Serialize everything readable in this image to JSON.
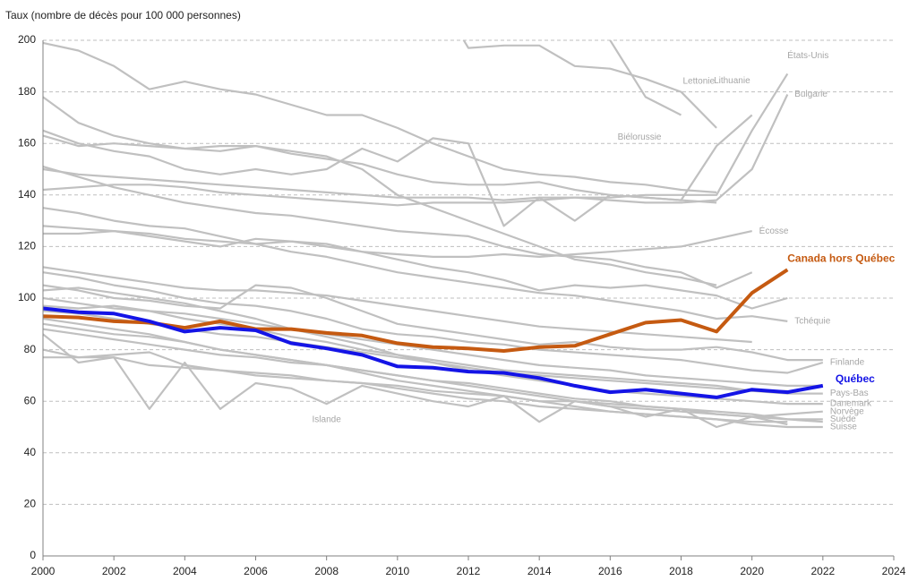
{
  "chart_data": {
    "type": "line",
    "y_axis_label": "Taux (nombre de décès pour 100 000 personnes)",
    "x": [
      2000,
      2001,
      2002,
      2003,
      2004,
      2005,
      2006,
      2007,
      2008,
      2009,
      2010,
      2011,
      2012,
      2013,
      2014,
      2015,
      2016,
      2017,
      2018,
      2019,
      2020,
      2021,
      2022
    ],
    "xlim": [
      2000,
      2024
    ],
    "xticks": [
      2000,
      2002,
      2004,
      2006,
      2008,
      2010,
      2012,
      2014,
      2016,
      2018,
      2020,
      2022,
      2024
    ],
    "ylim": [
      0,
      200
    ],
    "yticks": [
      0,
      20,
      40,
      60,
      80,
      100,
      120,
      140,
      160,
      180,
      200
    ],
    "grid": true,
    "series": [
      {
        "color": "#c0c0c0",
        "values": [
          199,
          196,
          190,
          181,
          184,
          181,
          179,
          175,
          171,
          171,
          166,
          160,
          155,
          150,
          148,
          147,
          145,
          144,
          142,
          141,
          null,
          null,
          null
        ]
      },
      {
        "color": "#c0c0c0",
        "values": [
          178,
          168,
          163,
          160,
          158,
          157,
          159,
          156,
          154,
          152,
          148,
          145,
          144,
          144,
          145,
          142,
          140,
          139,
          138,
          137,
          null,
          null,
          null
        ]
      },
      {
        "color": "#c0c0c0",
        "values": [
          163,
          159,
          160,
          159,
          158,
          159,
          159,
          157,
          155,
          150,
          140,
          135,
          130,
          125,
          120,
          115,
          113,
          110,
          108,
          105,
          null,
          null,
          null
        ]
      },
      {
        "color": "#c0c0c0",
        "values": [
          151,
          147,
          143,
          140,
          137,
          135,
          133,
          132,
          130,
          128,
          126,
          125,
          124,
          120,
          117,
          116,
          115,
          112,
          110,
          104,
          110,
          null,
          null
        ]
      },
      {
        "color": "#c0c0c0",
        "values": [
          125,
          125,
          126,
          124,
          122,
          120,
          123,
          122,
          121,
          118,
          115,
          112,
          110,
          107,
          103,
          105,
          104,
          105,
          103,
          101,
          96,
          100,
          null
        ]
      },
      {
        "color": "#c0c0c0",
        "values": [
          112,
          110,
          108,
          106,
          104,
          103,
          103,
          102,
          101,
          99,
          97,
          95,
          93,
          91,
          89,
          88,
          87,
          86,
          85,
          84,
          83,
          null,
          null
        ]
      },
      {
        "color": "#c0c0c0",
        "values": [
          105,
          103,
          100,
          99,
          97,
          96,
          105,
          104,
          100,
          95,
          90,
          88,
          86,
          84,
          82,
          83,
          81,
          80,
          80,
          81,
          79,
          76,
          76
        ]
      },
      {
        "color": "#c0c0c0",
        "values": [
          97,
          96,
          97,
          95,
          94,
          92,
          90,
          88,
          86,
          84,
          82,
          80,
          78,
          76,
          74,
          73,
          72,
          70,
          69,
          68,
          67,
          66,
          66
        ]
      },
      {
        "color": "#c0c0c0",
        "values": [
          95,
          94,
          92,
          90,
          88,
          86,
          85,
          83,
          81,
          79,
          77,
          75,
          73,
          71,
          70,
          69,
          68,
          67,
          66,
          65,
          64,
          64,
          null
        ]
      },
      {
        "color": "#c0c0c0",
        "values": [
          80,
          77,
          77,
          74,
          73,
          72,
          70,
          69,
          68,
          67,
          66,
          64,
          63,
          62,
          60,
          60,
          59,
          58,
          57,
          56,
          55,
          53,
          52
        ]
      },
      {
        "color": "#c0c0c0",
        "values": [
          77,
          77,
          78,
          79,
          74,
          72,
          71,
          70,
          68,
          67,
          65,
          63,
          61,
          60,
          58,
          57,
          56,
          55,
          54,
          53,
          52,
          52,
          null
        ]
      },
      {
        "name": "États-Unis",
        "color": "#c0c0c0",
        "values": [
          142,
          143,
          144,
          144,
          143,
          141,
          140,
          139,
          138,
          137,
          136,
          137,
          137,
          137,
          138,
          139,
          139,
          140,
          140,
          140,
          165,
          187,
          null
        ]
      },
      {
        "name": "Bulgarie",
        "color": "#c0c0c0",
        "values": [
          150,
          148,
          147,
          146,
          145,
          144,
          143,
          142,
          141,
          140,
          139,
          139,
          139,
          138,
          139,
          139,
          138,
          137,
          137,
          138,
          150,
          179,
          null
        ]
      },
      {
        "name": "Lettonie",
        "color": "#c0c0c0",
        "values": [
          null,
          null,
          null,
          null,
          null,
          null,
          null,
          null,
          null,
          null,
          null,
          220,
          197,
          198,
          198,
          190,
          189,
          185,
          180,
          166,
          null,
          null,
          null
        ]
      },
      {
        "name": "Lithuanie",
        "color": "#c0c0c0",
        "values": [
          165,
          160,
          157,
          155,
          150,
          148,
          150,
          148,
          150,
          158,
          153,
          162,
          160,
          128,
          139,
          130,
          140,
          139,
          138,
          159,
          171,
          null,
          null
        ]
      },
      {
        "name": "Biélorussie",
        "color": "#c0c0c0",
        "values": [
          null,
          null,
          null,
          null,
          null,
          null,
          null,
          null,
          null,
          null,
          null,
          null,
          null,
          null,
          null,
          210,
          200,
          178,
          171,
          null,
          null,
          null,
          null
        ]
      },
      {
        "name": "Écosse",
        "color": "#c0c0c0",
        "values": [
          128,
          127,
          126,
          125,
          123,
          122,
          121,
          122,
          120,
          118,
          117,
          116,
          116,
          117,
          116,
          117,
          118,
          119,
          120,
          123,
          126,
          null,
          null
        ]
      },
      {
        "name": "Tchéquie",
        "color": "#c0c0c0",
        "values": [
          135,
          133,
          130,
          128,
          127,
          124,
          121,
          118,
          116,
          113,
          110,
          108,
          106,
          104,
          102,
          101,
          99,
          97,
          95,
          92,
          93,
          91,
          null
        ]
      },
      {
        "name": "Finlande",
        "color": "#c0c0c0",
        "values": [
          110,
          108,
          105,
          103,
          100,
          98,
          97,
          95,
          92,
          88,
          86,
          85,
          83,
          82,
          80,
          79,
          78,
          77,
          76,
          74,
          72,
          71,
          75
        ]
      },
      {
        "name": "Pays-Bas",
        "color": "#c0c0c0",
        "values": [
          100,
          98,
          96,
          95,
          92,
          90,
          88,
          85,
          83,
          80,
          78,
          76,
          74,
          72,
          71,
          70,
          69,
          68,
          67,
          66,
          64,
          63,
          63
        ]
      },
      {
        "name": "Danemark",
        "color": "#c0c0c0",
        "values": [
          103,
          104,
          102,
          100,
          98,
          95,
          92,
          88,
          85,
          82,
          78,
          75,
          72,
          70,
          68,
          66,
          64,
          63,
          62,
          61,
          60,
          59,
          59
        ]
      },
      {
        "name": "Norvège",
        "color": "#c0c0c0",
        "values": [
          90,
          88,
          86,
          85,
          83,
          80,
          78,
          76,
          74,
          72,
          70,
          68,
          66,
          64,
          62,
          60,
          58,
          57,
          56,
          55,
          54,
          55,
          56
        ]
      },
      {
        "name": "Suède",
        "color": "#c0c0c0",
        "values": [
          88,
          86,
          84,
          82,
          80,
          78,
          77,
          75,
          74,
          72,
          70,
          68,
          67,
          65,
          63,
          61,
          60,
          58,
          57,
          55,
          54,
          53,
          53
        ]
      },
      {
        "name": "Suisse",
        "color": "#c0c0c0",
        "values": [
          92,
          90,
          88,
          86,
          83,
          80,
          78,
          76,
          74,
          71,
          68,
          66,
          64,
          62,
          60,
          58,
          56,
          55,
          54,
          53,
          51,
          50,
          50
        ]
      },
      {
        "name": "Islande",
        "color": "#c0c0c0",
        "values": [
          86,
          75,
          77,
          57,
          75,
          57,
          67,
          65,
          59,
          66,
          63,
          60,
          58,
          62,
          52,
          60,
          58,
          54,
          57,
          50,
          54,
          51,
          null
        ]
      },
      {
        "name": "Canada hors Québec",
        "color": "#c55a11",
        "values": [
          93,
          92.5,
          91,
          90.5,
          88.5,
          91,
          88,
          88,
          86.5,
          85.5,
          82.5,
          81,
          80.5,
          79.5,
          81,
          81.5,
          86,
          90.5,
          91.5,
          87,
          102,
          111,
          null
        ]
      },
      {
        "name": "Québec",
        "color": "#1414e6",
        "values": [
          96,
          94.5,
          94,
          91,
          87,
          88.5,
          87.5,
          82.5,
          80.5,
          78,
          73.5,
          73,
          71.5,
          71,
          69,
          66,
          63.5,
          64.5,
          63,
          61.5,
          64.5,
          63.5,
          66
        ]
      }
    ]
  }
}
